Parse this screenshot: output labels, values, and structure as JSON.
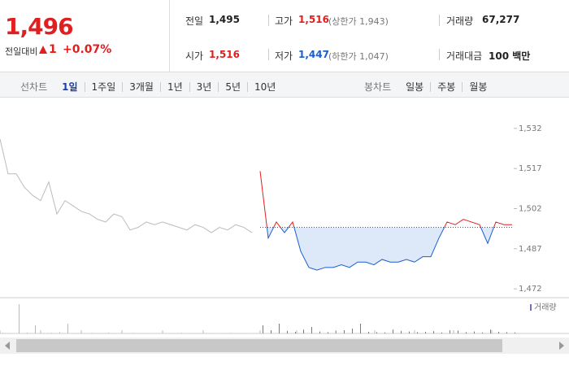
{
  "quote": {
    "price": "1,496",
    "change_label": "전일대비",
    "change": "1",
    "change_pct": "+0.07%"
  },
  "stats": [
    {
      "label": "전일",
      "value": "1,495"
    },
    {
      "label": "고가",
      "value": "1,516",
      "note": "(상한가 1,943)"
    },
    {
      "label": "거래량",
      "value": "67,277"
    },
    {
      "label": "시가",
      "value": "1,516"
    },
    {
      "label": "저가",
      "value": "1,447",
      "note": "(하한가 1,047)"
    },
    {
      "label": "거래대금",
      "value": "100 백만"
    }
  ],
  "tabs": {
    "line_label": "선차트",
    "line": [
      "1일",
      "1주일",
      "3개월",
      "1년",
      "3년",
      "5년",
      "10년"
    ],
    "candle_label": "봉차트",
    "candle": [
      "일봉",
      "주봉",
      "월봉"
    ]
  },
  "chart_data": {
    "type": "line",
    "ylim": [
      1469,
      1542
    ],
    "yticks": [
      {
        "value": 1532,
        "label": "1,532"
      },
      {
        "value": 1517,
        "label": "1,517"
      },
      {
        "value": 1502,
        "label": "1,502"
      },
      {
        "value": 1487,
        "label": "1,487"
      },
      {
        "value": 1472,
        "label": "1,472"
      }
    ],
    "baseline": 1495,
    "series": [
      {
        "color": "#bbbbbb",
        "values": [
          1528,
          1515,
          1515,
          1510,
          1507,
          1505,
          1512,
          1500,
          1505,
          1503,
          1501,
          1500,
          1498,
          1497,
          1500,
          1499,
          1494,
          1495,
          1497,
          1496,
          1497,
          1496,
          1495,
          1494,
          1496,
          1495,
          1493,
          1495,
          1494,
          1496,
          1495,
          1493,
          null,
          null,
          null,
          null,
          null,
          null,
          null,
          null,
          null,
          null,
          null,
          null,
          null,
          null,
          null,
          null,
          null,
          null,
          null,
          null,
          null,
          null,
          null,
          null,
          null,
          null,
          null,
          null,
          null,
          null,
          null,
          null
        ]
      },
      {
        "color": "#1a5fd0",
        "up_color": "#e02020",
        "fill": "#dde8f8",
        "values": [
          null,
          null,
          null,
          null,
          null,
          null,
          null,
          null,
          null,
          null,
          null,
          null,
          null,
          null,
          null,
          null,
          null,
          null,
          null,
          null,
          null,
          null,
          null,
          null,
          null,
          null,
          null,
          null,
          null,
          null,
          null,
          null,
          1516,
          1491,
          1497,
          1493,
          1497,
          1486,
          1480,
          1479,
          1480,
          1480,
          1481,
          1480,
          1482,
          1482,
          1481,
          1483,
          1482,
          1482,
          1483,
          1482,
          1484,
          1484,
          1491,
          1497,
          1496,
          1498,
          1497,
          1496,
          1489,
          1497,
          1496,
          1496
        ]
      }
    ],
    "volume": {
      "name": "거래량",
      "color": "#7a6cc0",
      "ylim": [
        0,
        100
      ],
      "values": [
        2,
        1,
        90,
        3,
        25,
        1,
        2,
        4,
        30,
        1,
        1,
        2,
        1,
        3,
        1,
        1,
        2,
        1,
        1,
        1,
        1,
        1,
        2,
        1,
        1,
        1,
        1,
        1,
        2,
        1,
        1,
        1,
        25,
        10,
        30,
        8,
        5,
        12,
        20,
        6,
        4,
        8,
        10,
        15,
        30,
        5,
        4,
        3,
        12,
        8,
        6,
        4,
        5,
        7,
        3,
        10,
        9,
        4,
        6,
        3,
        12,
        5,
        4,
        3
      ]
    }
  }
}
